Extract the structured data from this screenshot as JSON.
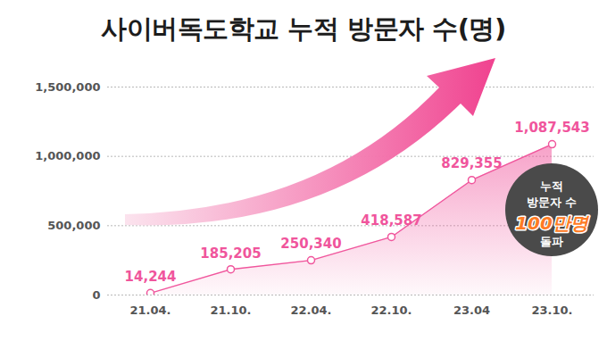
{
  "chart_data": {
    "type": "area",
    "title": "사이버독도학교 누적 방문자 수(명)",
    "categories": [
      "21.04.",
      "21.10.",
      "22.04.",
      "22.10.",
      "23.04",
      "23.10."
    ],
    "values": [
      14244,
      185205,
      250340,
      418587,
      829355,
      1087543
    ],
    "value_labels": [
      "14,244",
      "185,205",
      "250,340",
      "418,587",
      "829,355",
      "1,087,543"
    ],
    "data_labels": true,
    "color": "#f0559c",
    "marker": "circle",
    "ylim": [
      0,
      1500000
    ],
    "yticks": [
      0,
      {
        "value": 500000,
        "label": "500,000"
      },
      {
        "value": 1000000,
        "label": "1,000,000"
      },
      {
        "value": 1500000,
        "label": "1,500,000"
      }
    ],
    "grid": true,
    "annotations": [
      "누적",
      "방문자 수",
      "100만명",
      "돌파"
    ]
  }
}
